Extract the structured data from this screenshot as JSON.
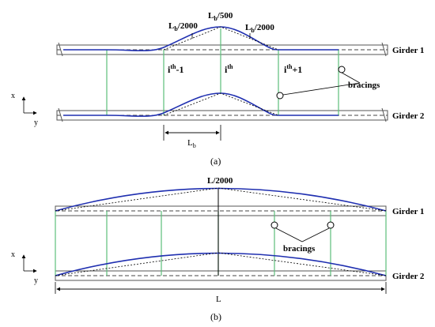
{
  "panel_a": {
    "caption": "(a)",
    "girder1": "Girder 1",
    "girder2": "Girder 2",
    "imperf_left": "L",
    "imperf_left_sub": "b",
    "imperf_left_den": "/2000",
    "imperf_mid": "L",
    "imperf_mid_sub": "b",
    "imperf_mid_den": "/500",
    "imperf_right": "L",
    "imperf_right_sub": "b",
    "imperf_right_den": "/2000",
    "brace_prev": "i",
    "brace_prev_sup": "th",
    "brace_prev_suffix": "-1",
    "brace_cur": "i",
    "brace_cur_sup": "th",
    "brace_next": "i",
    "brace_next_sup": "th",
    "brace_next_suffix": "+1",
    "bracings": "bracings",
    "span": "L",
    "span_sub": "b",
    "axis_x": "x",
    "axis_y": "y"
  },
  "panel_b": {
    "caption": "(b)",
    "girder1": "Girder 1",
    "girder2": "Girder 2",
    "imperf": "L/2000",
    "bracings": "bracings",
    "span": "L",
    "axis_x": "x",
    "axis_y": "y"
  },
  "colors": {
    "curve": "#1f2fb0",
    "bracing": "#5cbf7a",
    "girder": "#555555"
  }
}
